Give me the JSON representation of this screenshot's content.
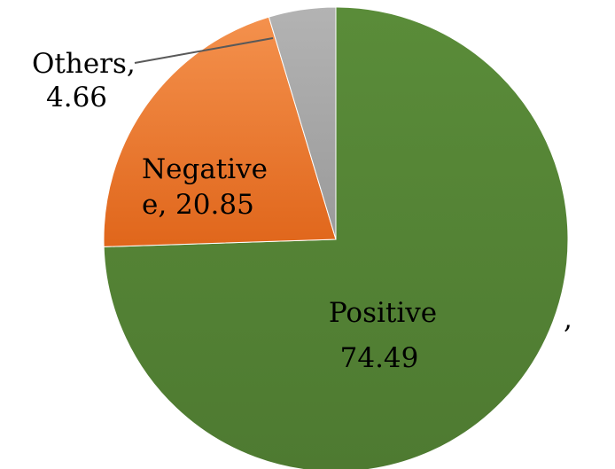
{
  "chart_data": {
    "type": "pie",
    "title": "",
    "series": [
      {
        "values": [
          74.49,
          20.85,
          4.66
        ]
      }
    ],
    "categories": [
      "Positive",
      "Negative",
      "Others"
    ],
    "slices": [
      {
        "label_lines": [
          "Positive",
          "74.49"
        ],
        "value": 74.49,
        "color": "#548235",
        "trailing_comma": ","
      },
      {
        "label_lines": [
          "Negative",
          "e, 20.85"
        ],
        "value": 20.85,
        "color": "#ed7d31"
      },
      {
        "label_lines": [
          "Others,",
          "4.66"
        ],
        "value": 4.66,
        "color": "#a5a5a5"
      }
    ],
    "start_angle_deg": 0,
    "direction": "clockwise",
    "legend": "none",
    "leader_line_color": "#595959"
  }
}
